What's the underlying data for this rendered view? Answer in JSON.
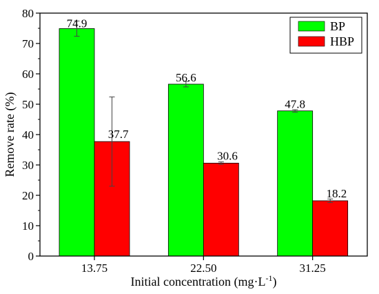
{
  "chart_data": {
    "type": "bar",
    "categories": [
      "13.75",
      "22.50",
      "31.25"
    ],
    "series": [
      {
        "name": "BP",
        "color": "#00ff00",
        "values": [
          74.9,
          56.6,
          47.8
        ],
        "labels": [
          "74.9",
          "56.6",
          "47.8"
        ],
        "error": [
          2.5,
          0.9,
          0.4
        ]
      },
      {
        "name": "HBP",
        "color": "#ff0000",
        "values": [
          37.7,
          30.6,
          18.2
        ],
        "labels": [
          "37.7",
          "30.6",
          "18.2"
        ],
        "error": [
          14.7,
          0.4,
          0.6
        ]
      }
    ],
    "xlabel_main": "Initial concentration (mg·L",
    "xlabel_sup": "-1",
    "xlabel_end": ")",
    "ylabel": "Remove rate (%)",
    "ylim": [
      0,
      80
    ],
    "yticks": [
      "0",
      "10",
      "20",
      "30",
      "40",
      "50",
      "60",
      "70",
      "80"
    ],
    "grid": false,
    "legend_position": "top-right"
  }
}
